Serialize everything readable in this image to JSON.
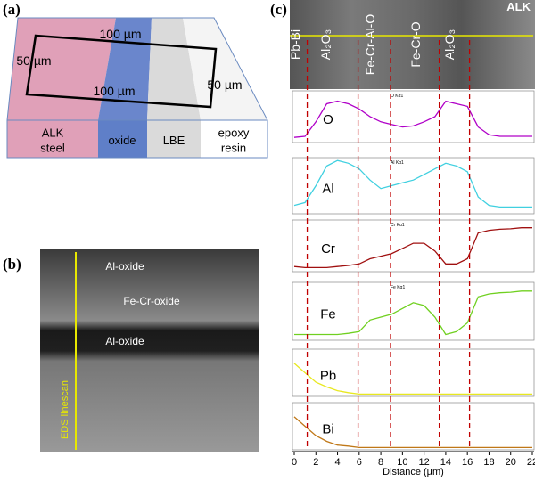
{
  "panel_a": {
    "label": "(a)",
    "top_length": "100 µm",
    "left_width": "50 µm",
    "bottom_length": "100 µm",
    "right_width": "50 µm",
    "layers": [
      [
        "ALK",
        "steel"
      ],
      [
        "oxide"
      ],
      [
        "LBE"
      ],
      [
        "epoxy",
        "resin"
      ]
    ]
  },
  "panel_b": {
    "label": "(b)",
    "linescan": "EDS linescan",
    "regions": [
      "Al-oxide",
      "Fe-Cr-oxide",
      "Al-oxide"
    ]
  },
  "panel_c": {
    "label": "(c)",
    "sample": "ALK",
    "phases": [
      "Pb-Bi",
      "Al₂O₃",
      "Fe-Cr-Al-O",
      "Fe-Cr-O",
      "Al₂O₃"
    ],
    "x_label": "Distance (µm)",
    "xlim": [
      0,
      22
    ],
    "xticks": [
      0,
      2,
      4,
      6,
      8,
      10,
      12,
      14,
      16,
      18,
      20,
      22
    ],
    "dividers": [
      1.2,
      5.9,
      8.9,
      13.4,
      16.2
    ],
    "x": [
      0,
      1,
      2,
      3,
      4,
      5,
      6,
      7,
      8,
      9,
      10,
      11,
      12,
      13,
      14,
      15,
      16,
      17,
      18,
      19,
      20,
      21,
      22
    ],
    "profiles": [
      {
        "name": "O",
        "tag": "O Kα1",
        "color": "#b000c8",
        "values": [
          10,
          12,
          40,
          75,
          80,
          75,
          65,
          50,
          40,
          35,
          30,
          32,
          40,
          50,
          80,
          75,
          70,
          30,
          15,
          12,
          12,
          12,
          12
        ]
      },
      {
        "name": "Al",
        "tag": "Al Kα1",
        "color": "#40d0e0",
        "values": [
          15,
          20,
          50,
          85,
          95,
          90,
          80,
          60,
          45,
          50,
          55,
          60,
          70,
          80,
          90,
          85,
          75,
          30,
          15,
          12,
          12,
          12,
          12
        ]
      },
      {
        "name": "Cr",
        "tag": "Cr Kα1",
        "color": "#a01010",
        "values": [
          10,
          8,
          8,
          8,
          10,
          12,
          15,
          25,
          30,
          35,
          45,
          55,
          55,
          40,
          15,
          15,
          25,
          75,
          80,
          82,
          83,
          85,
          85
        ]
      },
      {
        "name": "Fe",
        "tag": "Fe Kα1",
        "color": "#70d020",
        "values": [
          10,
          10,
          10,
          10,
          10,
          12,
          15,
          35,
          40,
          45,
          55,
          65,
          60,
          40,
          10,
          15,
          30,
          75,
          80,
          82,
          83,
          85,
          85
        ]
      },
      {
        "name": "Pb",
        "color": "#e8e820",
        "values": [
          70,
          50,
          30,
          20,
          12,
          8,
          5,
          5,
          5,
          5,
          5,
          5,
          5,
          5,
          5,
          5,
          5,
          5,
          5,
          5,
          5,
          5,
          5
        ]
      },
      {
        "name": "Bi",
        "color": "#c07818",
        "values": [
          70,
          50,
          30,
          18,
          10,
          8,
          5,
          5,
          5,
          5,
          5,
          5,
          5,
          5,
          5,
          5,
          5,
          5,
          5,
          5,
          5,
          5,
          5
        ]
      }
    ]
  }
}
